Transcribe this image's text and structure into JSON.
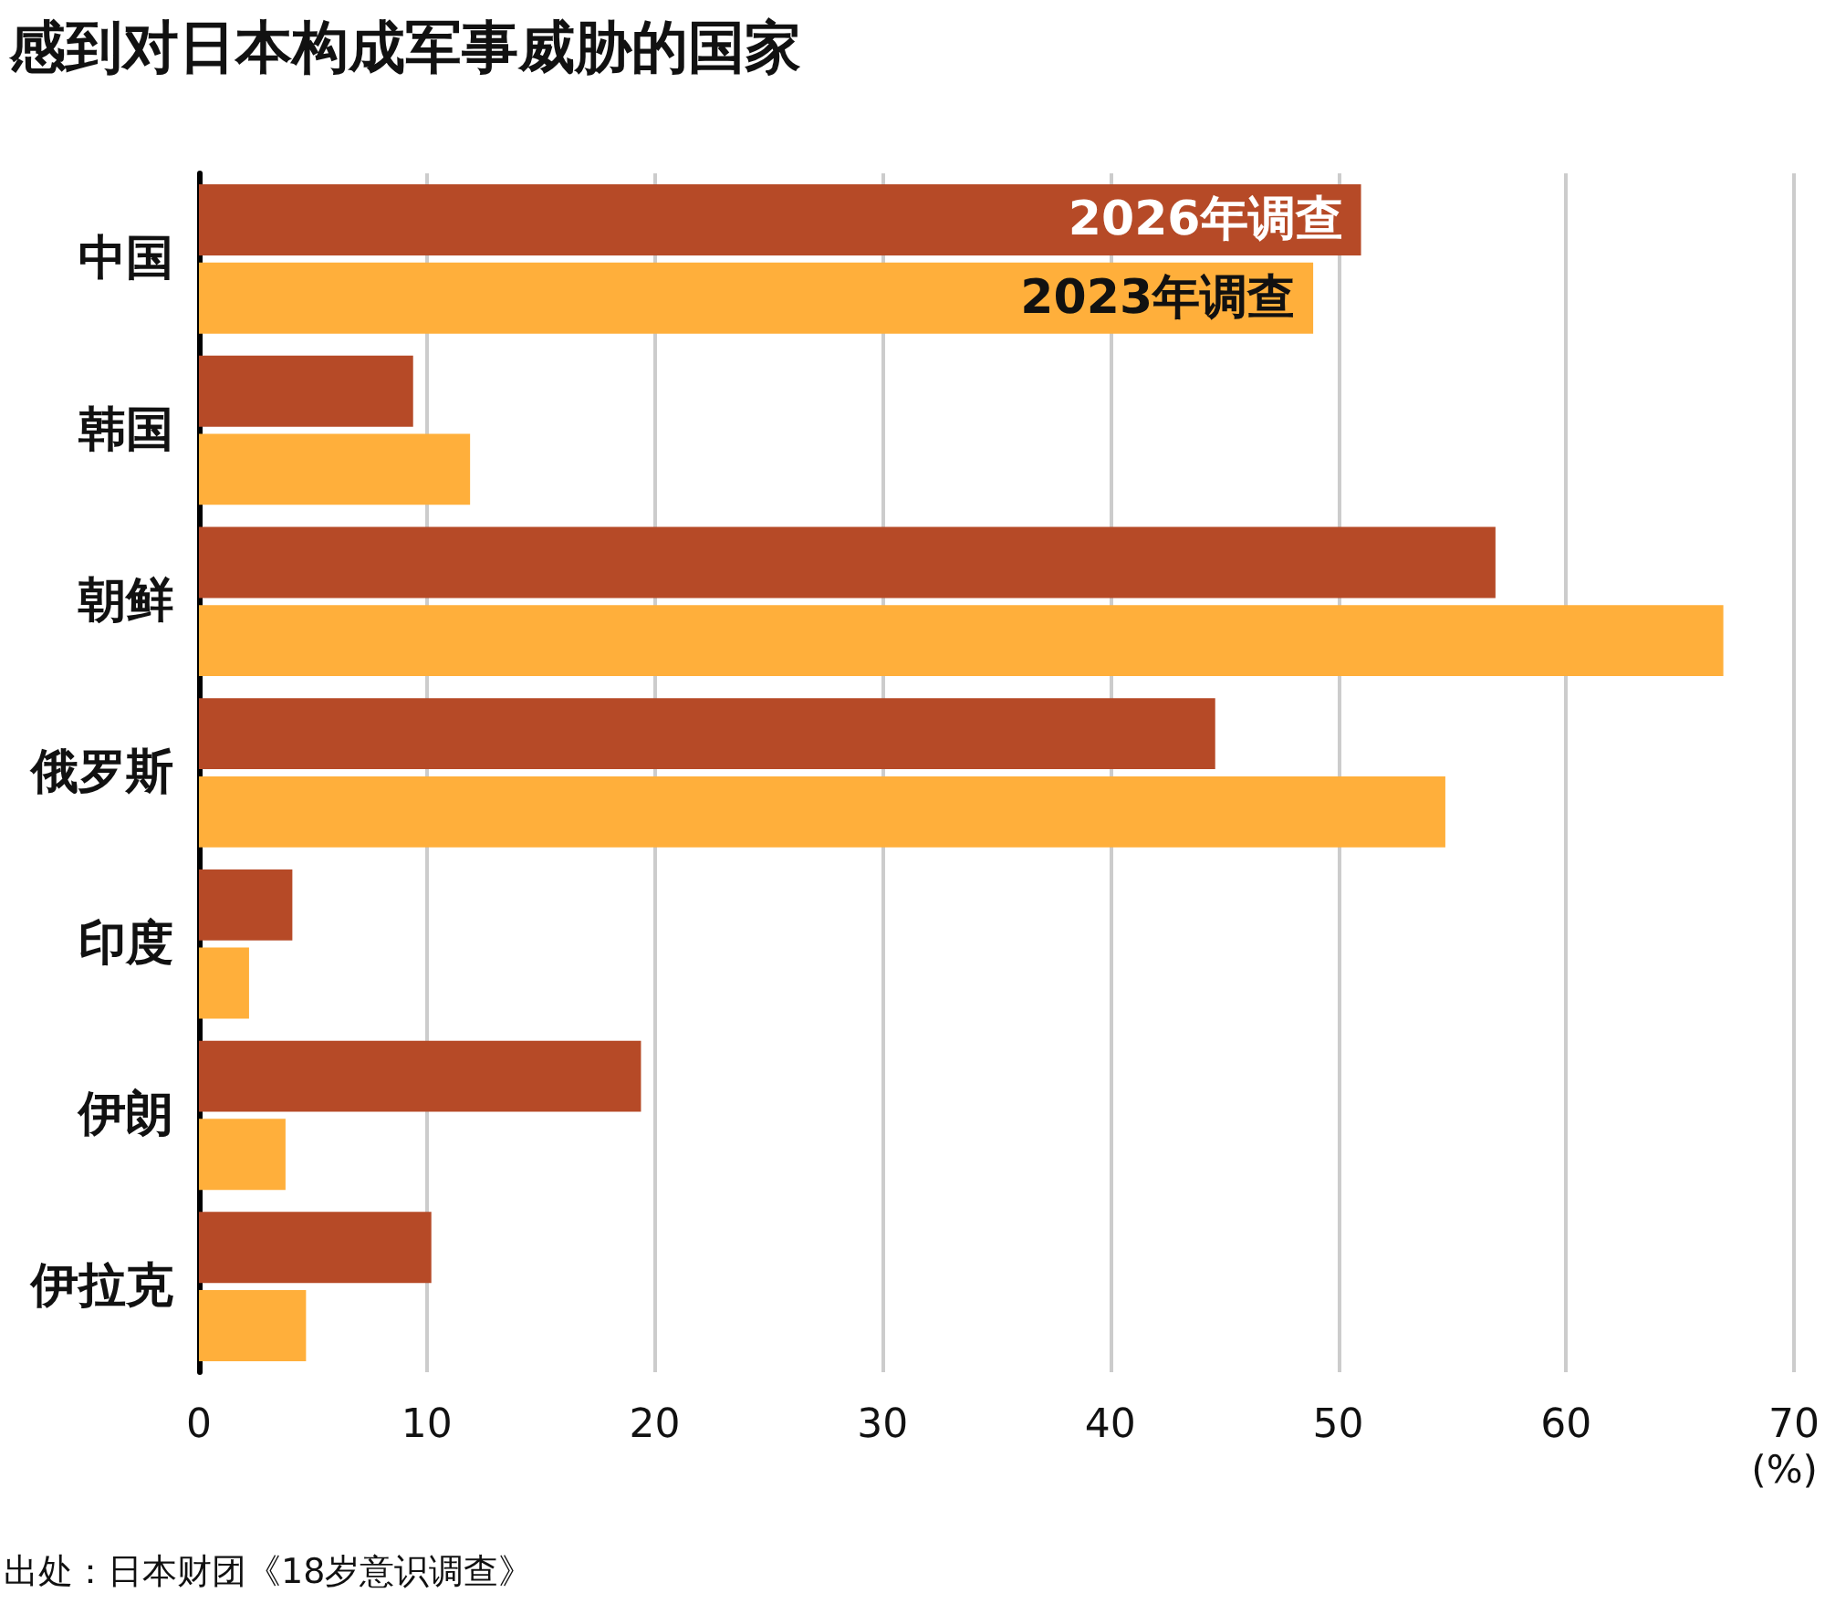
{
  "chart_data": {
    "type": "bar",
    "orientation": "horizontal",
    "title": "感到对日本构成军事威胁的国家",
    "categories": [
      "中国",
      "韩国",
      "朝鲜",
      "俄罗斯",
      "印度",
      "伊朗",
      "伊拉克"
    ],
    "series": [
      {
        "name": "2026年调查",
        "color": "#b64a27",
        "values": [
          51.0,
          9.4,
          56.9,
          44.6,
          4.1,
          19.4,
          10.2
        ]
      },
      {
        "name": "2023年调查",
        "color": "#ffaf3b",
        "values": [
          48.9,
          11.9,
          66.9,
          54.7,
          2.2,
          3.8,
          4.7
        ]
      }
    ],
    "xlim": [
      0,
      70
    ],
    "xticks": [
      0,
      10,
      20,
      30,
      40,
      50,
      60,
      70
    ],
    "xlabel": "(%)",
    "grid": "x",
    "annotations": [
      "出处：日本财团《18岁意识调查》"
    ]
  }
}
